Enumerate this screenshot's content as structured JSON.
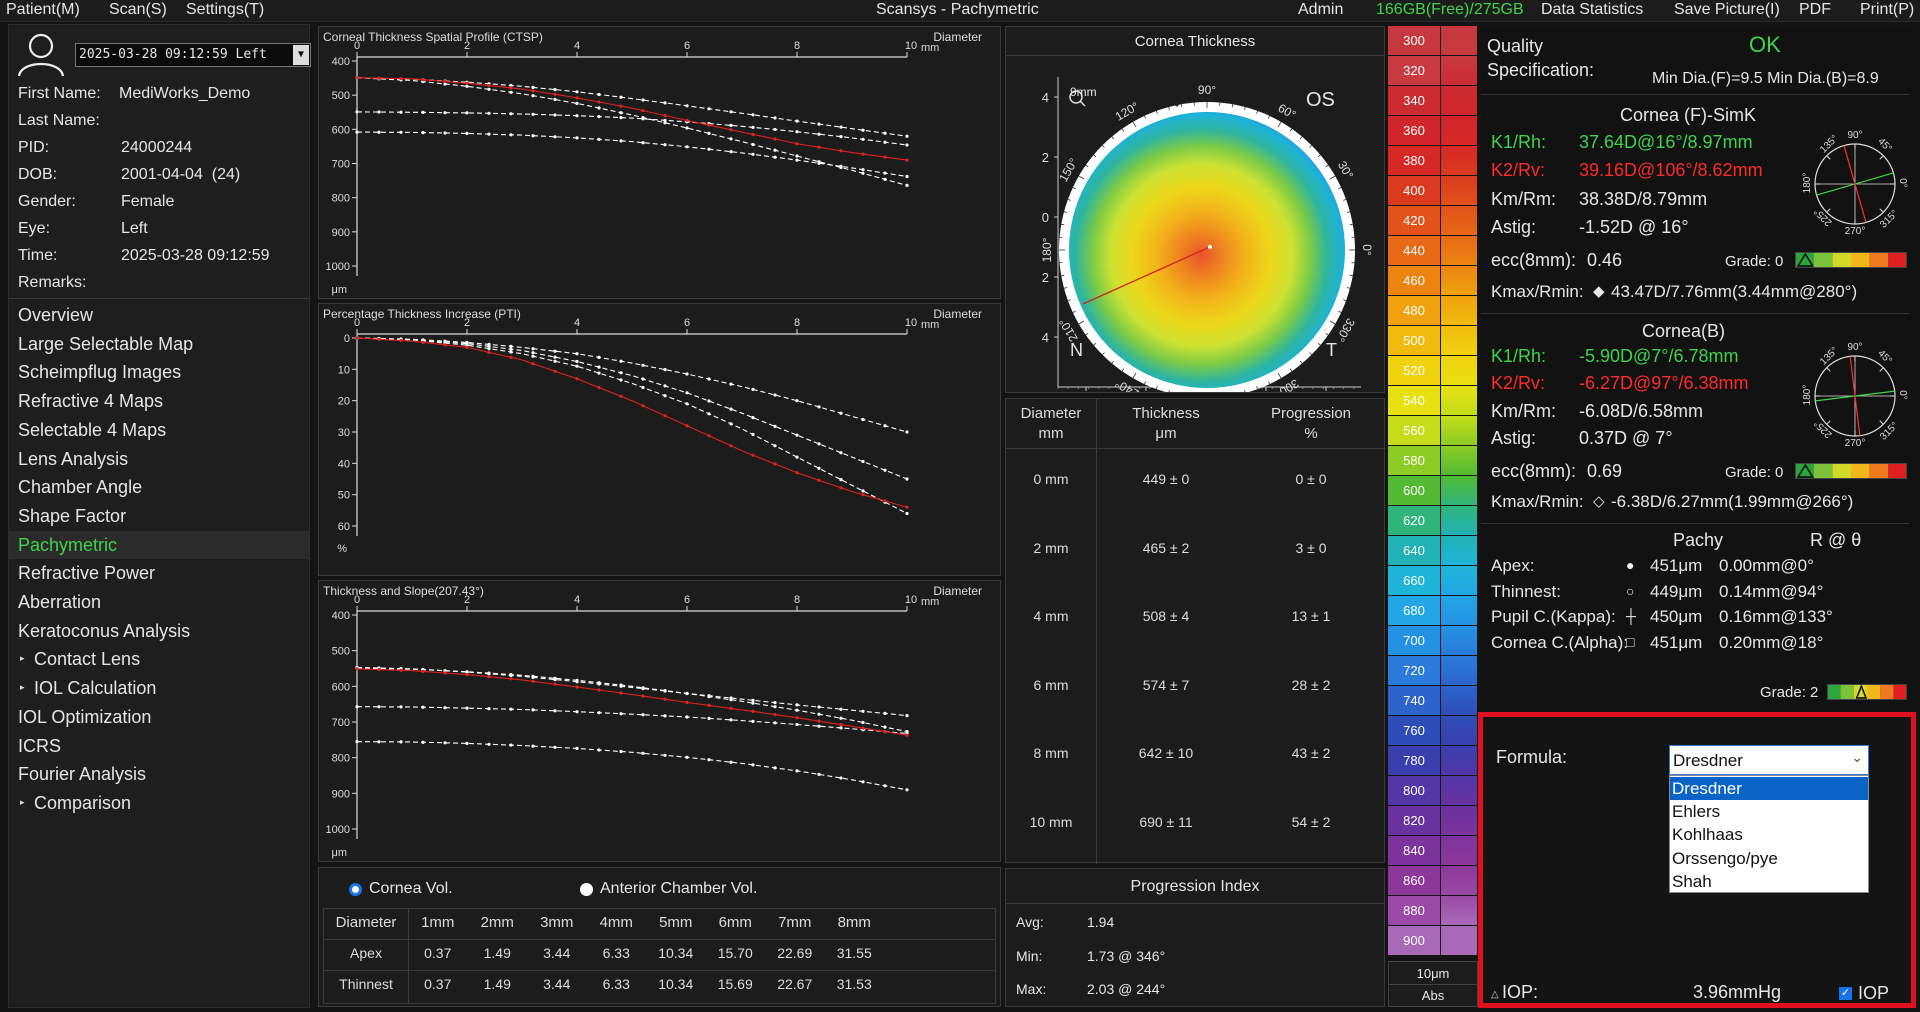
{
  "menubar": {
    "patient": "Patient(M)",
    "scan": "Scan(S)",
    "settings": "Settings(T)",
    "title": "Scansys - Pachymetric",
    "admin": "Admin",
    "disk": "166GB(Free)/275GB",
    "data_statistics": "Data Statistics",
    "save_picture": "Save Picture(I)",
    "pdf": "PDF",
    "print": "Print(P)"
  },
  "patient": {
    "exam_select": "2025-03-28 09:12:59 Left",
    "first_name_label": "First Name:",
    "first_name": "MediWorks_Demo",
    "last_name_label": "Last Name:",
    "last_name": "",
    "pid_label": "PID:",
    "pid": "24000244",
    "dob_label": "DOB:",
    "dob": "2001-04-04  (24)",
    "gender_label": "Gender:",
    "gender": "Female",
    "eye_label": "Eye:",
    "eye": "Left",
    "time_label": "Time:",
    "time": "2025-03-28 09:12:59",
    "remarks_label": "Remarks:",
    "remarks": ""
  },
  "nav": [
    {
      "label": "Overview",
      "expandable": false,
      "active": false
    },
    {
      "label": "Large Selectable Map",
      "expandable": false,
      "active": false
    },
    {
      "label": "Scheimpflug Images",
      "expandable": false,
      "active": false
    },
    {
      "label": "Refractive 4 Maps",
      "expandable": false,
      "active": false
    },
    {
      "label": "Selectable 4 Maps",
      "expandable": false,
      "active": false
    },
    {
      "label": "Lens Analysis",
      "expandable": false,
      "active": false
    },
    {
      "label": "Chamber Angle",
      "expandable": false,
      "active": false
    },
    {
      "label": "Shape Factor",
      "expandable": false,
      "active": false
    },
    {
      "label": "Pachymetric",
      "expandable": false,
      "active": true
    },
    {
      "label": "Refractive Power",
      "expandable": false,
      "active": false
    },
    {
      "label": "Aberration",
      "expandable": false,
      "active": false
    },
    {
      "label": "Keratoconus Analysis",
      "expandable": false,
      "active": false
    },
    {
      "label": "Contact Lens",
      "expandable": true,
      "active": false
    },
    {
      "label": "IOL Calculation",
      "expandable": true,
      "active": false
    },
    {
      "label": "IOL Optimization",
      "expandable": false,
      "active": false
    },
    {
      "label": "ICRS",
      "expandable": false,
      "active": false
    },
    {
      "label": "Fourier Analysis",
      "expandable": false,
      "active": false
    },
    {
      "label": "Comparison",
      "expandable": true,
      "active": false
    }
  ],
  "charts": {
    "ctsp": {
      "title": "Corneal Thickness Spatial Profile (CTSP)",
      "xlabel": "Diameter",
      "xunit": "mm",
      "yunit": "μm",
      "xticks": [
        "0",
        "2",
        "4",
        "6",
        "8",
        "10"
      ],
      "yticks": [
        "400",
        "500",
        "600",
        "700",
        "800",
        "900",
        "1000"
      ]
    },
    "pti": {
      "title": "Percentage Thickness Increase (PTI)",
      "xlabel": "Diameter",
      "xunit": "mm",
      "yunit": "%",
      "xticks": [
        "0",
        "2",
        "4",
        "6",
        "8",
        "10"
      ],
      "yticks": [
        "0",
        "10",
        "20",
        "30",
        "40",
        "50",
        "60"
      ]
    },
    "ts": {
      "title": "Thickness and Slope(207.43°)",
      "xlabel": "Diameter",
      "xunit": "mm",
      "yunit": "μm",
      "xticks": [
        "0",
        "2",
        "4",
        "6",
        "8",
        "10"
      ],
      "yticks": [
        "400",
        "500",
        "600",
        "700",
        "800",
        "900",
        "1000"
      ]
    }
  },
  "chart_data": [
    {
      "type": "line",
      "title": "Corneal Thickness Spatial Profile (CTSP)",
      "xlabel": "Diameter",
      "x": [
        0,
        1,
        2,
        3,
        4,
        5,
        6,
        7,
        8,
        9,
        10
      ],
      "ylim": [
        1000,
        400
      ],
      "xlim": [
        0,
        10
      ],
      "series": [
        {
          "color": "#e02020",
          "values": [
            449,
            452,
            465,
            482,
            508,
            538,
            574,
            608,
            642,
            668,
            690
          ]
        },
        {
          "color": "#ffffff",
          "values": [
            449,
            453,
            462,
            474,
            490,
            510,
            531,
            553,
            576,
            598,
            620
          ]
        },
        {
          "color": "#ffffff",
          "values": [
            449,
            457,
            474,
            496,
            524,
            558,
            596,
            636,
            678,
            720,
            764
          ]
        },
        {
          "color": "#ffffff",
          "values": [
            549,
            550,
            552,
            555,
            560,
            567,
            578,
            591,
            607,
            625,
            646
          ]
        },
        {
          "color": "#ffffff",
          "values": [
            608,
            609,
            612,
            617,
            625,
            636,
            651,
            669,
            690,
            713,
            738
          ]
        }
      ]
    },
    {
      "type": "line",
      "title": "Percentage Thickness Increase (PTI)",
      "xlabel": "Diameter",
      "x": [
        0,
        1,
        2,
        3,
        4,
        5,
        6,
        7,
        8,
        9,
        10
      ],
      "ylim": [
        65,
        0
      ],
      "xlim": [
        0,
        10
      ],
      "series": [
        {
          "color": "#e02020",
          "values": [
            0,
            1,
            3,
            7,
            13,
            20,
            28,
            36,
            43,
            49,
            54
          ]
        },
        {
          "color": "#ffffff",
          "values": [
            0,
            0.4,
            1.4,
            3,
            5,
            8,
            11.5,
            15.5,
            20,
            25,
            30
          ]
        },
        {
          "color": "#ffffff",
          "values": [
            0,
            0.5,
            1.8,
            4,
            7.5,
            12,
            17.5,
            24,
            31,
            38,
            45
          ]
        },
        {
          "color": "#ffffff",
          "values": [
            0,
            0.6,
            2.3,
            5,
            9,
            14.5,
            21,
            29,
            38,
            47,
            56
          ]
        }
      ]
    },
    {
      "type": "line",
      "title": "Thickness and Slope(207.43°)",
      "xlabel": "Diameter",
      "x": [
        0,
        1,
        2,
        3,
        4,
        5,
        6,
        7,
        8,
        9,
        10
      ],
      "ylim": [
        1000,
        400
      ],
      "xlim": [
        0,
        10
      ],
      "series": [
        {
          "color": "#e02020",
          "values": [
            551,
            556,
            567,
            582,
            602,
            623,
            645,
            666,
            688,
            712,
            737
          ]
        },
        {
          "color": "#ffffff",
          "values": [
            547,
            551,
            560,
            572,
            587,
            603,
            620,
            636,
            652,
            667,
            682
          ]
        },
        {
          "color": "#ffffff",
          "values": [
            549,
            552,
            559,
            569,
            583,
            600,
            620,
            642,
            667,
            695,
            727
          ]
        },
        {
          "color": "#ffffff",
          "values": [
            657,
            658,
            661,
            665,
            671,
            678,
            686,
            696,
            707,
            719,
            732
          ]
        },
        {
          "color": "#ffffff",
          "values": [
            755,
            756,
            760,
            766,
            774,
            785,
            799,
            816,
            837,
            862,
            890
          ]
        }
      ]
    }
  ],
  "volume": {
    "cornea_label": "Cornea Vol.",
    "anterior_label": "Anterior Chamber Vol.",
    "headers": [
      "Diameter",
      "1mm",
      "2mm",
      "3mm",
      "4mm",
      "5mm",
      "6mm",
      "7mm",
      "8mm"
    ],
    "rows": [
      [
        "Apex",
        "0.37",
        "1.49",
        "3.44",
        "6.33",
        "10.34",
        "15.70",
        "22.69",
        "31.55"
      ],
      [
        "Thinnest",
        "0.37",
        "1.49",
        "3.44",
        "6.33",
        "10.34",
        "15.69",
        "22.67",
        "31.53"
      ]
    ]
  },
  "cornea_map": {
    "title": "Cornea Thickness",
    "eye": "OS",
    "nasal": "N",
    "temporal": "T",
    "zoom": "9mm",
    "angles": [
      "90°",
      "60°",
      "30°",
      "0°",
      "330°",
      "300°",
      "270°",
      "240°",
      "210°",
      "180°",
      "150°",
      "120°"
    ],
    "axis_left": [
      "4",
      "2",
      "0",
      "2",
      "4"
    ],
    "axis_bottom": [
      "4",
      "2",
      "0",
      "2",
      "4"
    ]
  },
  "thickness_table": {
    "headers": [
      [
        "Diameter",
        "mm"
      ],
      [
        "Thickness",
        "μm"
      ],
      [
        "Progression",
        "%"
      ]
    ],
    "rows": [
      [
        "0 mm",
        "449 ± 0",
        "0 ± 0"
      ],
      [
        "2 mm",
        "465 ± 2",
        "3 ± 0"
      ],
      [
        "4 mm",
        "508 ± 4",
        "13 ± 1"
      ],
      [
        "6 mm",
        "574 ± 7",
        "28 ± 2"
      ],
      [
        "8 mm",
        "642 ± 10",
        "43 ± 2"
      ],
      [
        "10 mm",
        "690 ± 11",
        "54 ± 2"
      ]
    ]
  },
  "progression": {
    "title": "Progression Index",
    "avg_label": "Avg:",
    "avg": "1.94",
    "min_label": "Min:",
    "min": "1.73 @ 346°",
    "max_label": "Max:",
    "max": "2.03 @ 244°"
  },
  "scale": {
    "values": [
      "300",
      "320",
      "340",
      "360",
      "380",
      "400",
      "420",
      "440",
      "460",
      "480",
      "500",
      "520",
      "540",
      "560",
      "580",
      "600",
      "620",
      "640",
      "660",
      "680",
      "700",
      "720",
      "740",
      "760",
      "780",
      "800",
      "820",
      "840",
      "860",
      "880",
      "900"
    ],
    "colors": [
      "#c6383e",
      "#c83a40",
      "#cc2b31",
      "#d0262b",
      "#d62825",
      "#db3a1e",
      "#e2521a",
      "#e86916",
      "#ec8411",
      "#efa20e",
      "#f1bb0d",
      "#f0d20f",
      "#e8e112",
      "#c4dd18",
      "#8ccc24",
      "#52bb33",
      "#2fb57c",
      "#21b2b5",
      "#1eb5d8",
      "#22a6e6",
      "#2492e3",
      "#2a7bda",
      "#2c64cc",
      "#2e4db8",
      "#3a3fae",
      "#5236a6",
      "#68329f",
      "#7d339c",
      "#8c3799",
      "#9a4aa6",
      "#a86ab8"
    ],
    "step": "10μm",
    "mode": "Abs"
  },
  "quality": {
    "label1": "Quality",
    "label2": "Specification:",
    "status": "OK",
    "min_dia": "Min Dia.(F)=9.5  Min Dia.(B)=8.9"
  },
  "front": {
    "title": "Cornea (F)-SimK",
    "k1_label": "K1/Rh:",
    "k1": "37.64D@16°/8.97mm",
    "k2_label": "K2/Rv:",
    "k2": "39.16D@106°/8.62mm",
    "km_label": "Km/Rm:",
    "km": "38.38D/8.79mm",
    "astig_label": "Astig:",
    "astig": "-1.52D @ 16°",
    "ecc_label": "ecc(8mm):",
    "ecc": "0.46",
    "grade_label": "Grade: 0",
    "kmax_label": "Kmax/Rmin:",
    "kmax": "43.47D/7.76mm(3.44mm@280°)"
  },
  "back": {
    "title": "Cornea(B)",
    "k1_label": "K1/Rh:",
    "k1": "-5.90D@7°/6.78mm",
    "k2_label": "K2/Rv:",
    "k2": "-6.27D@97°/6.38mm",
    "km_label": "Km/Rm:",
    "km": "-6.08D/6.58mm",
    "astig_label": "Astig:",
    "astig": "0.37D @ 7°",
    "ecc_label": "ecc(8mm):",
    "ecc": "0.69",
    "grade_label": "Grade: 0",
    "kmax_label": "Kmax/Rmin:",
    "kmax": "-6.38D/6.27mm(1.99mm@266°)"
  },
  "axis_dial": {
    "labels": [
      "90°",
      "135°",
      "180°",
      "225°",
      "270°",
      "315°",
      "0°",
      "45°"
    ]
  },
  "pachy": {
    "col1": "Pachy",
    "col2": "R @ θ",
    "rows": [
      [
        "Apex:",
        "451μm",
        "0.00mm@0°"
      ],
      [
        "Thinnest:",
        "449μm",
        "0.14mm@94°"
      ],
      [
        "Pupil C.(Kappa):",
        "450μm",
        "0.16mm@133°"
      ],
      [
        "Cornea C.(Alpha):",
        "451μm",
        "0.20mm@18°"
      ]
    ],
    "grade": "Grade: 2"
  },
  "formula": {
    "label": "Formula:",
    "selected": "Dresdner",
    "options": [
      "Dresdner",
      "Ehlers",
      "Kohlhaas",
      "Orssengo/pye",
      "Shah"
    ],
    "iop_label": "IOP:",
    "iop_value": "3.96mmHg",
    "iop_check": "IOP"
  },
  "colors": {
    "accent_green": "#3fd34a",
    "red": "#ff2a2a",
    "highlight_border": "#e0101e",
    "select_blue": "#0a64c8"
  }
}
